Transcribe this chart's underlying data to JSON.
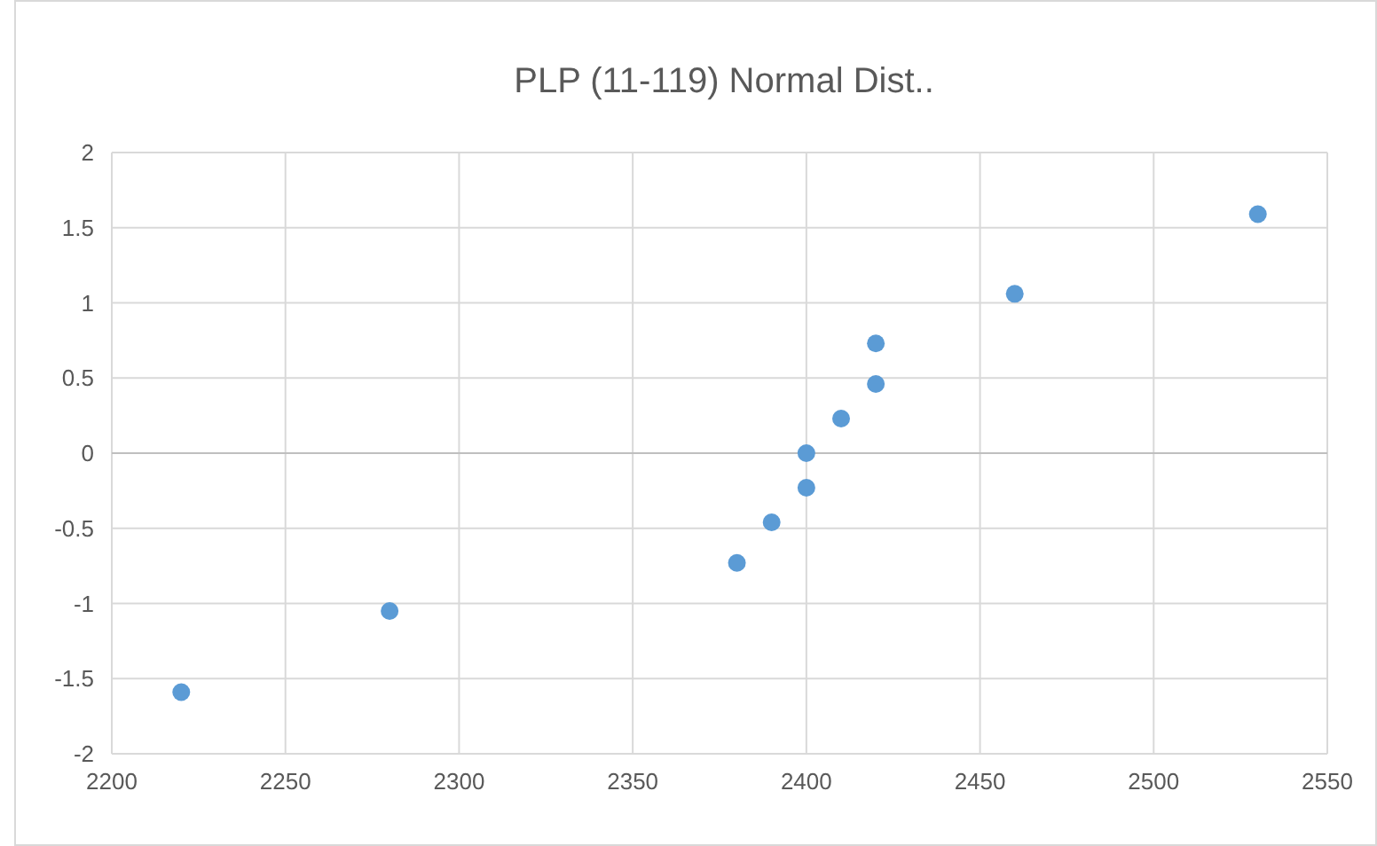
{
  "chart_data": {
    "type": "scatter",
    "title": "PLP (11-119) Normal Dist..",
    "x": [
      2220,
      2280,
      2380,
      2390,
      2400,
      2400,
      2410,
      2420,
      2420,
      2460,
      2530
    ],
    "series": [
      {
        "color": "#5b9bd5",
        "values": [
          -1.59,
          -1.05,
          -0.73,
          -0.46,
          -0.23,
          0,
          0.23,
          0.46,
          0.73,
          1.06,
          1.59
        ]
      }
    ],
    "xlim": [
      2200,
      2550
    ],
    "xticks": [
      2200,
      2250,
      2300,
      2350,
      2400,
      2450,
      2500,
      2550
    ],
    "ylim": [
      -2,
      2
    ],
    "yticks": [
      -2,
      -1.5,
      -1,
      -0.5,
      0,
      0.5,
      1,
      1.5,
      2
    ],
    "grid": true,
    "marker": "circle"
  }
}
